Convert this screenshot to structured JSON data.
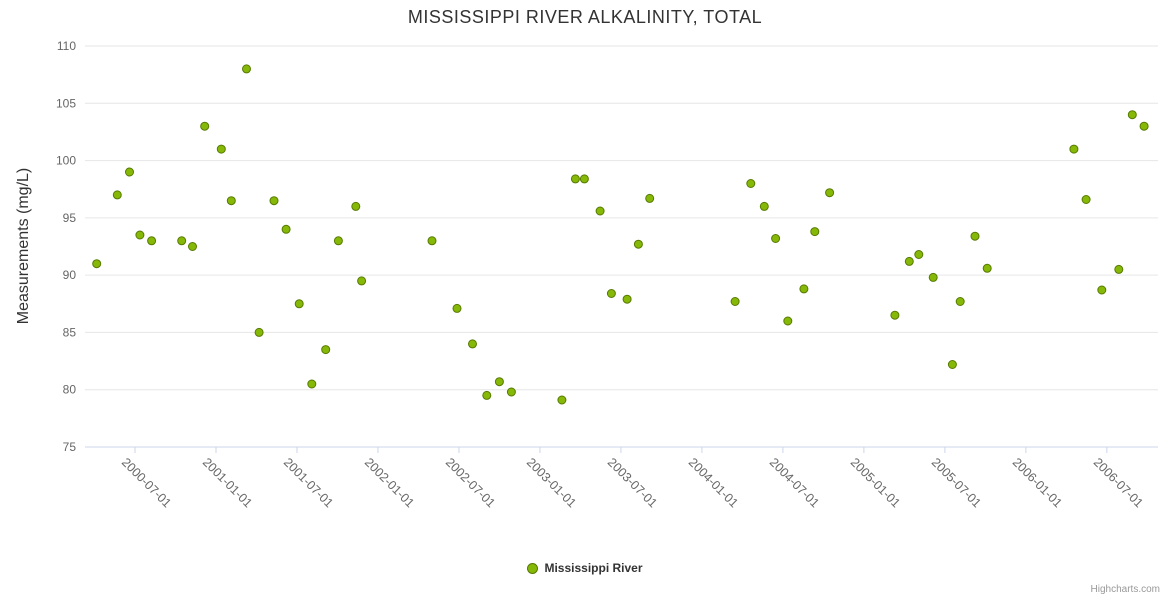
{
  "page": {
    "credits": "Highcharts.com"
  },
  "chart_data": {
    "type": "scatter",
    "title": "MISSISSIPPI RIVER ALKALINITY, TOTAL",
    "xlabel": "",
    "ylabel": "Measurements (mg/L)",
    "ylim": [
      75,
      110
    ],
    "y_ticks": [
      75,
      80,
      85,
      90,
      95,
      100,
      105,
      110
    ],
    "x_tick_labels": [
      "2000-07-01",
      "2001-01-01",
      "2001-07-01",
      "2002-01-01",
      "2002-07-01",
      "2003-01-01",
      "2003-07-01",
      "2004-01-01",
      "2004-07-01",
      "2005-01-01",
      "2005-07-01",
      "2006-01-01",
      "2006-07-01"
    ],
    "x_range": [
      "2000-03-10",
      "2006-10-25"
    ],
    "grid": true,
    "legend_position": "bottom-center",
    "colors": {
      "grid": "#e6e6e6",
      "axis_line": "#ccd6eb",
      "tick_label": "#666666",
      "marker_fill": "#86b808",
      "marker_stroke": "#567a00"
    },
    "series": [
      {
        "name": "Mississippi River",
        "points": [
          {
            "date": "2000-04-06",
            "value": 91
          },
          {
            "date": "2000-05-22",
            "value": 97
          },
          {
            "date": "2000-06-19",
            "value": 99
          },
          {
            "date": "2000-07-12",
            "value": 93.5
          },
          {
            "date": "2000-08-08",
            "value": 93
          },
          {
            "date": "2000-10-15",
            "value": 93
          },
          {
            "date": "2000-11-09",
            "value": 92.5
          },
          {
            "date": "2000-12-06",
            "value": 103
          },
          {
            "date": "2001-01-13",
            "value": 101
          },
          {
            "date": "2001-02-05",
            "value": 96.5
          },
          {
            "date": "2001-03-09",
            "value": 108
          },
          {
            "date": "2001-04-07",
            "value": 85
          },
          {
            "date": "2001-05-10",
            "value": 96.5
          },
          {
            "date": "2001-06-07",
            "value": 94
          },
          {
            "date": "2001-07-06",
            "value": 87.5
          },
          {
            "date": "2001-08-04",
            "value": 80.5
          },
          {
            "date": "2001-09-05",
            "value": 83.5
          },
          {
            "date": "2001-10-03",
            "value": 93
          },
          {
            "date": "2001-11-12",
            "value": 96
          },
          {
            "date": "2001-11-25",
            "value": 89.5
          },
          {
            "date": "2002-05-01",
            "value": 93
          },
          {
            "date": "2002-06-27",
            "value": 87.1
          },
          {
            "date": "2002-08-01",
            "value": 84
          },
          {
            "date": "2002-09-03",
            "value": 79.5
          },
          {
            "date": "2002-10-01",
            "value": 80.7
          },
          {
            "date": "2002-10-28",
            "value": 79.8
          },
          {
            "date": "2003-02-20",
            "value": 79.1
          },
          {
            "date": "2003-03-20",
            "value": 98.4
          },
          {
            "date": "2003-04-10",
            "value": 98.4
          },
          {
            "date": "2003-05-15",
            "value": 95.6
          },
          {
            "date": "2003-06-10",
            "value": 88.4
          },
          {
            "date": "2003-07-15",
            "value": 87.9
          },
          {
            "date": "2003-08-10",
            "value": 92.7
          },
          {
            "date": "2003-09-05",
            "value": 96.7
          },
          {
            "date": "2004-03-15",
            "value": 87.7
          },
          {
            "date": "2004-04-20",
            "value": 98
          },
          {
            "date": "2004-05-20",
            "value": 96
          },
          {
            "date": "2004-06-15",
            "value": 93.2
          },
          {
            "date": "2004-07-12",
            "value": 86
          },
          {
            "date": "2004-08-18",
            "value": 88.8
          },
          {
            "date": "2004-09-12",
            "value": 93.8
          },
          {
            "date": "2004-10-15",
            "value": 97.2
          },
          {
            "date": "2005-03-10",
            "value": 86.5
          },
          {
            "date": "2005-04-12",
            "value": 91.2
          },
          {
            "date": "2005-05-03",
            "value": 91.8
          },
          {
            "date": "2005-06-05",
            "value": 89.8
          },
          {
            "date": "2005-07-18",
            "value": 82.2
          },
          {
            "date": "2005-08-05",
            "value": 87.7
          },
          {
            "date": "2005-09-08",
            "value": 93.4
          },
          {
            "date": "2005-10-05",
            "value": 90.6
          },
          {
            "date": "2006-04-18",
            "value": 101
          },
          {
            "date": "2006-05-15",
            "value": 96.6
          },
          {
            "date": "2006-06-20",
            "value": 88.7
          },
          {
            "date": "2006-07-28",
            "value": 90.5
          },
          {
            "date": "2006-08-28",
            "value": 104
          },
          {
            "date": "2006-09-24",
            "value": 103
          }
        ]
      }
    ]
  }
}
